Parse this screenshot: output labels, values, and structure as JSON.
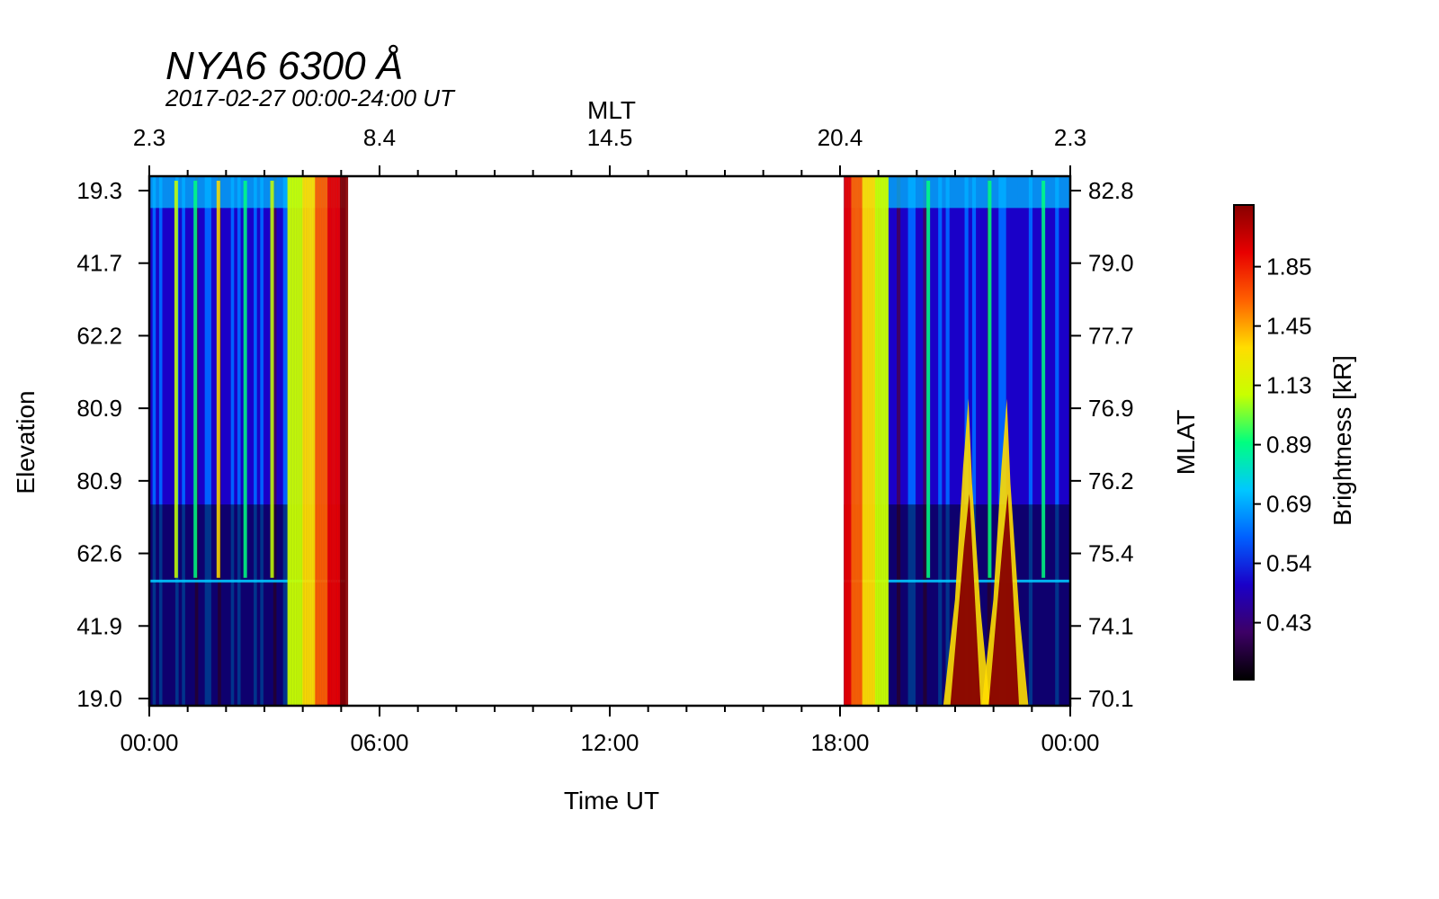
{
  "chart_data": {
    "type": "heatmap",
    "title": "NYA6 6300 Å",
    "subtitle": "2017-02-27 00:00-24:00 UT",
    "xlabel": "Time UT",
    "top_xlabel": "MLT",
    "ylabel": "Elevation",
    "right_ylabel": "MLAT",
    "colorbar_label": "Brightness [kR]",
    "x_ticks": [
      "00:00",
      "06:00",
      "12:00",
      "18:00",
      "00:00"
    ],
    "x_range_hours": [
      0,
      24
    ],
    "top_x_ticks": [
      "2.3",
      "8.4",
      "14.5",
      "20.4",
      "2.3"
    ],
    "left_y_ticks": [
      "19.3",
      "41.7",
      "62.2",
      "80.9",
      "80.9",
      "62.6",
      "41.9",
      "19.0"
    ],
    "right_y_ticks": [
      "82.8",
      "79.0",
      "77.7",
      "76.9",
      "76.2",
      "75.4",
      "74.1",
      "70.1"
    ],
    "colorbar_ticks": [
      "1.85",
      "1.45",
      "1.13",
      "0.89",
      "0.69",
      "0.54",
      "0.43"
    ],
    "colormap": [
      "#000000",
      "#3d0066",
      "#1a00c8",
      "#0060ff",
      "#00c8ff",
      "#00ff80",
      "#c8ff00",
      "#ffdd00",
      "#ff6000",
      "#e80000",
      "#880000"
    ],
    "data_segments": [
      {
        "name": "morning",
        "start_hour": 0.0,
        "end_hour": 5.1
      },
      {
        "name": "evening",
        "start_hour": 18.1,
        "end_hour": 24.0
      }
    ],
    "features": [
      {
        "type": "streak",
        "hour": 0.7,
        "level": 0.55
      },
      {
        "type": "streak",
        "hour": 1.2,
        "level": 0.45
      },
      {
        "type": "streak",
        "hour": 1.8,
        "level": 0.7
      },
      {
        "type": "streak",
        "hour": 2.5,
        "level": 0.5
      },
      {
        "type": "streak",
        "hour": 3.2,
        "level": 0.55
      },
      {
        "type": "ramp",
        "hour": 3.6,
        "end_hour": 5.1,
        "level_start": 0.55,
        "level_end": 1.0
      },
      {
        "type": "ramp",
        "hour": 18.1,
        "end_hour": 19.2,
        "level_start": 0.9,
        "level_end": 0.55
      },
      {
        "type": "burst",
        "hour": 21.3,
        "level": 0.95
      },
      {
        "type": "burst",
        "hour": 22.3,
        "level": 1.0
      },
      {
        "type": "streak",
        "hour": 20.3,
        "level": 0.5
      },
      {
        "type": "streak",
        "hour": 21.9,
        "level": 0.5
      },
      {
        "type": "streak",
        "hour": 23.3,
        "level": 0.45
      }
    ]
  }
}
